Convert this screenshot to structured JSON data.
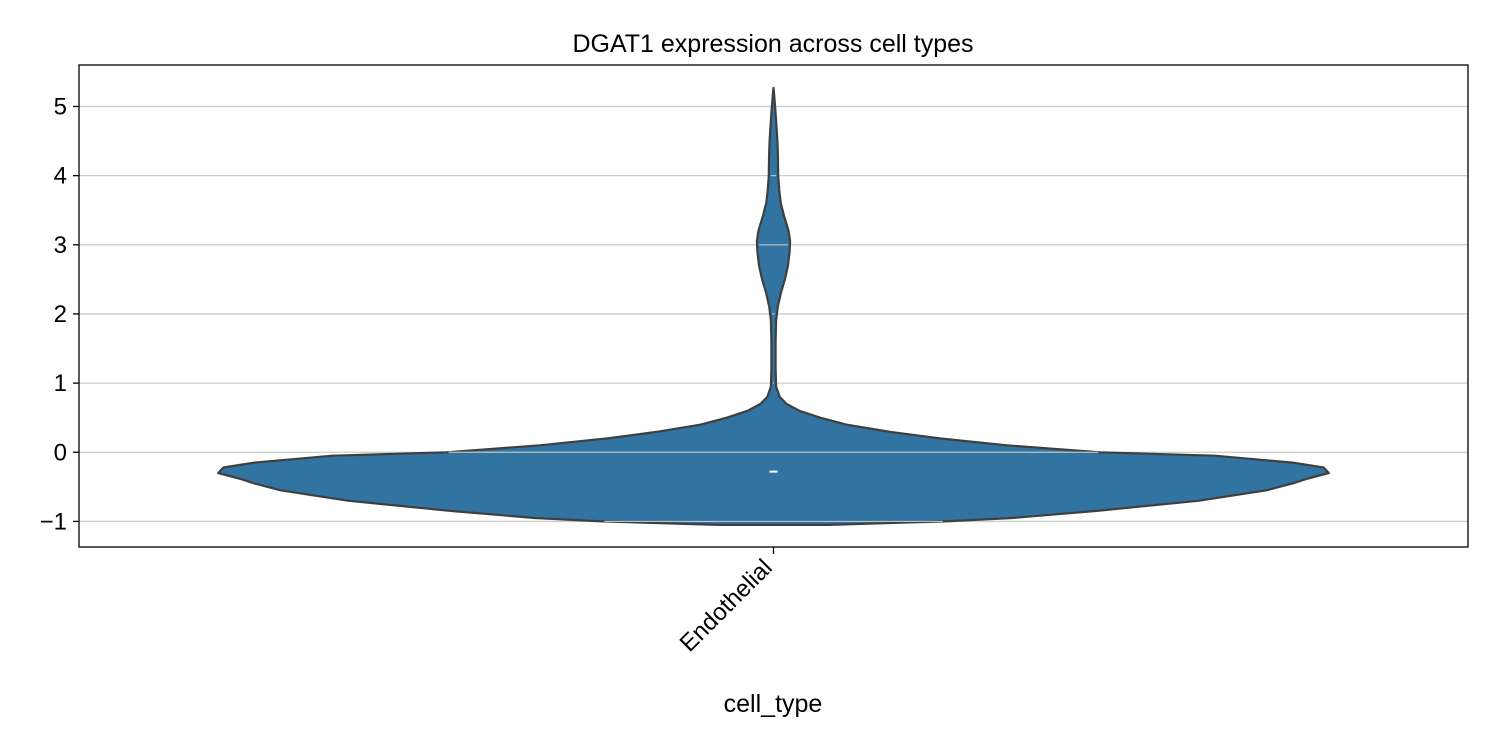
{
  "chart_data": {
    "type": "violin",
    "title": "DGAT1 expression across cell types",
    "xlabel": "cell_type",
    "ylabel": "",
    "categories": [
      "Endothelial"
    ],
    "ylim": [
      -1.37,
      5.6
    ],
    "yticks": [
      -1,
      0,
      1,
      2,
      3,
      4,
      5
    ],
    "ytick_labels": [
      "−1",
      "0",
      "1",
      "2",
      "3",
      "4",
      "5"
    ],
    "grid": "horizontal",
    "x_tick_rotation_deg": 45,
    "colors": {
      "fill": "#3274a1",
      "edge": "#3f3f3f",
      "grid": "#cccccc",
      "median_mark": "#ffffff"
    },
    "series": [
      {
        "category": "Endothelial",
        "median": -0.28,
        "density_profile": [
          {
            "y": -1.05,
            "half_width": 0.106
          },
          {
            "y": -1.0,
            "half_width": 0.33
          },
          {
            "y": -0.95,
            "half_width": 0.46
          },
          {
            "y": -0.85,
            "half_width": 0.62
          },
          {
            "y": -0.7,
            "half_width": 0.82
          },
          {
            "y": -0.55,
            "half_width": 0.95
          },
          {
            "y": -0.45,
            "half_width": 1.0
          },
          {
            "y": -0.38,
            "half_width": 1.03
          },
          {
            "y": -0.3,
            "half_width": 1.07
          },
          {
            "y": -0.22,
            "half_width": 1.06
          },
          {
            "y": -0.15,
            "half_width": 1.0
          },
          {
            "y": -0.05,
            "half_width": 0.85
          },
          {
            "y": 0.0,
            "half_width": 0.63
          },
          {
            "y": 0.1,
            "half_width": 0.45
          },
          {
            "y": 0.2,
            "half_width": 0.32
          },
          {
            "y": 0.3,
            "half_width": 0.22
          },
          {
            "y": 0.4,
            "half_width": 0.14
          },
          {
            "y": 0.5,
            "half_width": 0.09
          },
          {
            "y": 0.6,
            "half_width": 0.05
          },
          {
            "y": 0.7,
            "half_width": 0.025
          },
          {
            "y": 0.8,
            "half_width": 0.012
          },
          {
            "y": 0.95,
            "half_width": 0.005
          },
          {
            "y": 1.2,
            "half_width": 0.004
          },
          {
            "y": 1.6,
            "half_width": 0.004
          },
          {
            "y": 1.9,
            "half_width": 0.005
          },
          {
            "y": 2.1,
            "half_width": 0.008
          },
          {
            "y": 2.3,
            "half_width": 0.014
          },
          {
            "y": 2.5,
            "half_width": 0.022
          },
          {
            "y": 2.7,
            "half_width": 0.028
          },
          {
            "y": 2.9,
            "half_width": 0.031
          },
          {
            "y": 3.05,
            "half_width": 0.032
          },
          {
            "y": 3.2,
            "half_width": 0.029
          },
          {
            "y": 3.4,
            "half_width": 0.021
          },
          {
            "y": 3.6,
            "half_width": 0.014
          },
          {
            "y": 3.8,
            "half_width": 0.011
          },
          {
            "y": 4.0,
            "half_width": 0.009
          },
          {
            "y": 4.3,
            "half_width": 0.0085
          },
          {
            "y": 4.5,
            "half_width": 0.0075
          },
          {
            "y": 4.8,
            "half_width": 0.005
          },
          {
            "y": 5.0,
            "half_width": 0.003
          },
          {
            "y": 5.2,
            "half_width": 0.001
          },
          {
            "y": 5.27,
            "half_width": 0.0
          }
        ]
      }
    ]
  }
}
